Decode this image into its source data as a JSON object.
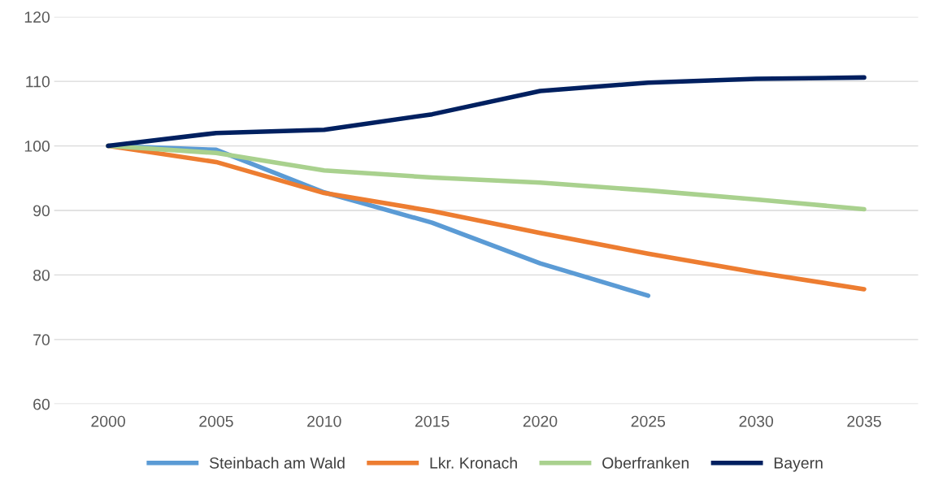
{
  "chart_data": {
    "type": "line",
    "categories": [
      "2000",
      "2005",
      "2010",
      "2015",
      "2020",
      "2025",
      "2030",
      "2035"
    ],
    "series": [
      {
        "name": "Steinbach am Wald",
        "color": "#5b9bd5",
        "values": [
          100,
          99.4,
          92.8,
          88.1,
          81.8,
          76.8,
          null,
          null
        ]
      },
      {
        "name": "Lkr. Kronach",
        "color": "#ed7d31",
        "values": [
          100,
          97.5,
          92.7,
          89.9,
          86.5,
          83.3,
          80.4,
          77.8
        ]
      },
      {
        "name": "Oberfranken",
        "color": "#a9d18e",
        "values": [
          100,
          98.9,
          96.2,
          95.1,
          94.3,
          93.1,
          91.7,
          90.2
        ]
      },
      {
        "name": "Bayern",
        "color": "#002060",
        "values": [
          100,
          102.0,
          102.5,
          104.9,
          108.5,
          109.8,
          110.4,
          110.6
        ]
      }
    ],
    "ylim": [
      60,
      120
    ],
    "yticks": [
      60,
      70,
      80,
      90,
      100,
      110,
      120
    ],
    "grid": "y",
    "legend": "bottom",
    "marker": "none",
    "line_style": "solid"
  }
}
